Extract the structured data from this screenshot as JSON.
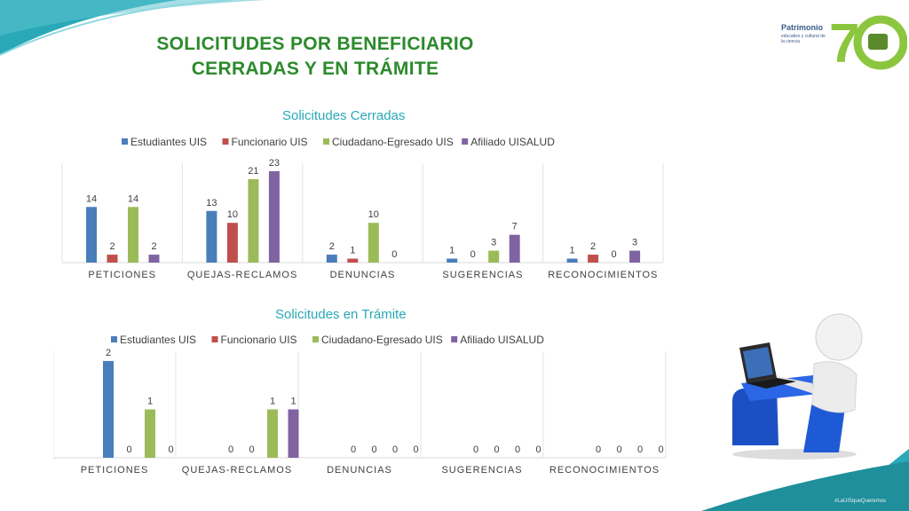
{
  "slide": {
    "title_line1": "SOLICITUDES POR BENEFICIARIO",
    "title_line2": "CERRADAS Y EN TRÁMITE",
    "logo_text": "Patrimonio",
    "logo_sub": "educativo y cultural de la ciencia",
    "hashtag": "#LaUISqueQueremos"
  },
  "colors": {
    "teal": "#29a9b8",
    "title_green": "#2c8a2c",
    "logo_green": "#8cc63f",
    "series": [
      "#4a7ebb",
      "#c0504d",
      "#9bbb59",
      "#8064a2"
    ]
  },
  "chart_data": [
    {
      "type": "bar",
      "title": "Solicitudes Cerradas",
      "categories": [
        "PETICIONES",
        "QUEJAS-RECLAMOS",
        "DENUNCIAS",
        "SUGERENCIAS",
        "RECONOCIMIENTOS"
      ],
      "series": [
        {
          "name": "Estudiantes UIS",
          "values": [
            14,
            13,
            2,
            1,
            1
          ]
        },
        {
          "name": "Funcionario UIS",
          "values": [
            2,
            10,
            1,
            0,
            2
          ]
        },
        {
          "name": "Ciudadano-Egresado UIS",
          "values": [
            14,
            21,
            10,
            3,
            0
          ]
        },
        {
          "name": "Afiliado UISALUD",
          "values": [
            2,
            23,
            0,
            7,
            3
          ]
        }
      ],
      "ylim": [
        0,
        25
      ],
      "legend": "top",
      "grid": false,
      "data_labels": true
    },
    {
      "type": "bar",
      "title": "Solicitudes en Trámite",
      "categories": [
        "PETICIONES",
        "QUEJAS-RECLAMOS",
        "DENUNCIAS",
        "SUGERENCIAS",
        "RECONOCIMIENTOS"
      ],
      "series": [
        {
          "name": "Estudiantes UIS",
          "values": [
            2,
            0,
            0,
            0,
            0
          ]
        },
        {
          "name": "Funcionario UIS",
          "values": [
            0,
            0,
            0,
            0,
            0
          ]
        },
        {
          "name": "Ciudadano-Egresado UIS",
          "values": [
            1,
            1,
            0,
            0,
            0
          ]
        },
        {
          "name": "Afiliado UISALUD",
          "values": [
            0,
            1,
            0,
            0,
            0
          ]
        }
      ],
      "ylim": [
        0,
        2.2
      ],
      "legend": "top",
      "grid": false,
      "data_labels": true
    }
  ]
}
